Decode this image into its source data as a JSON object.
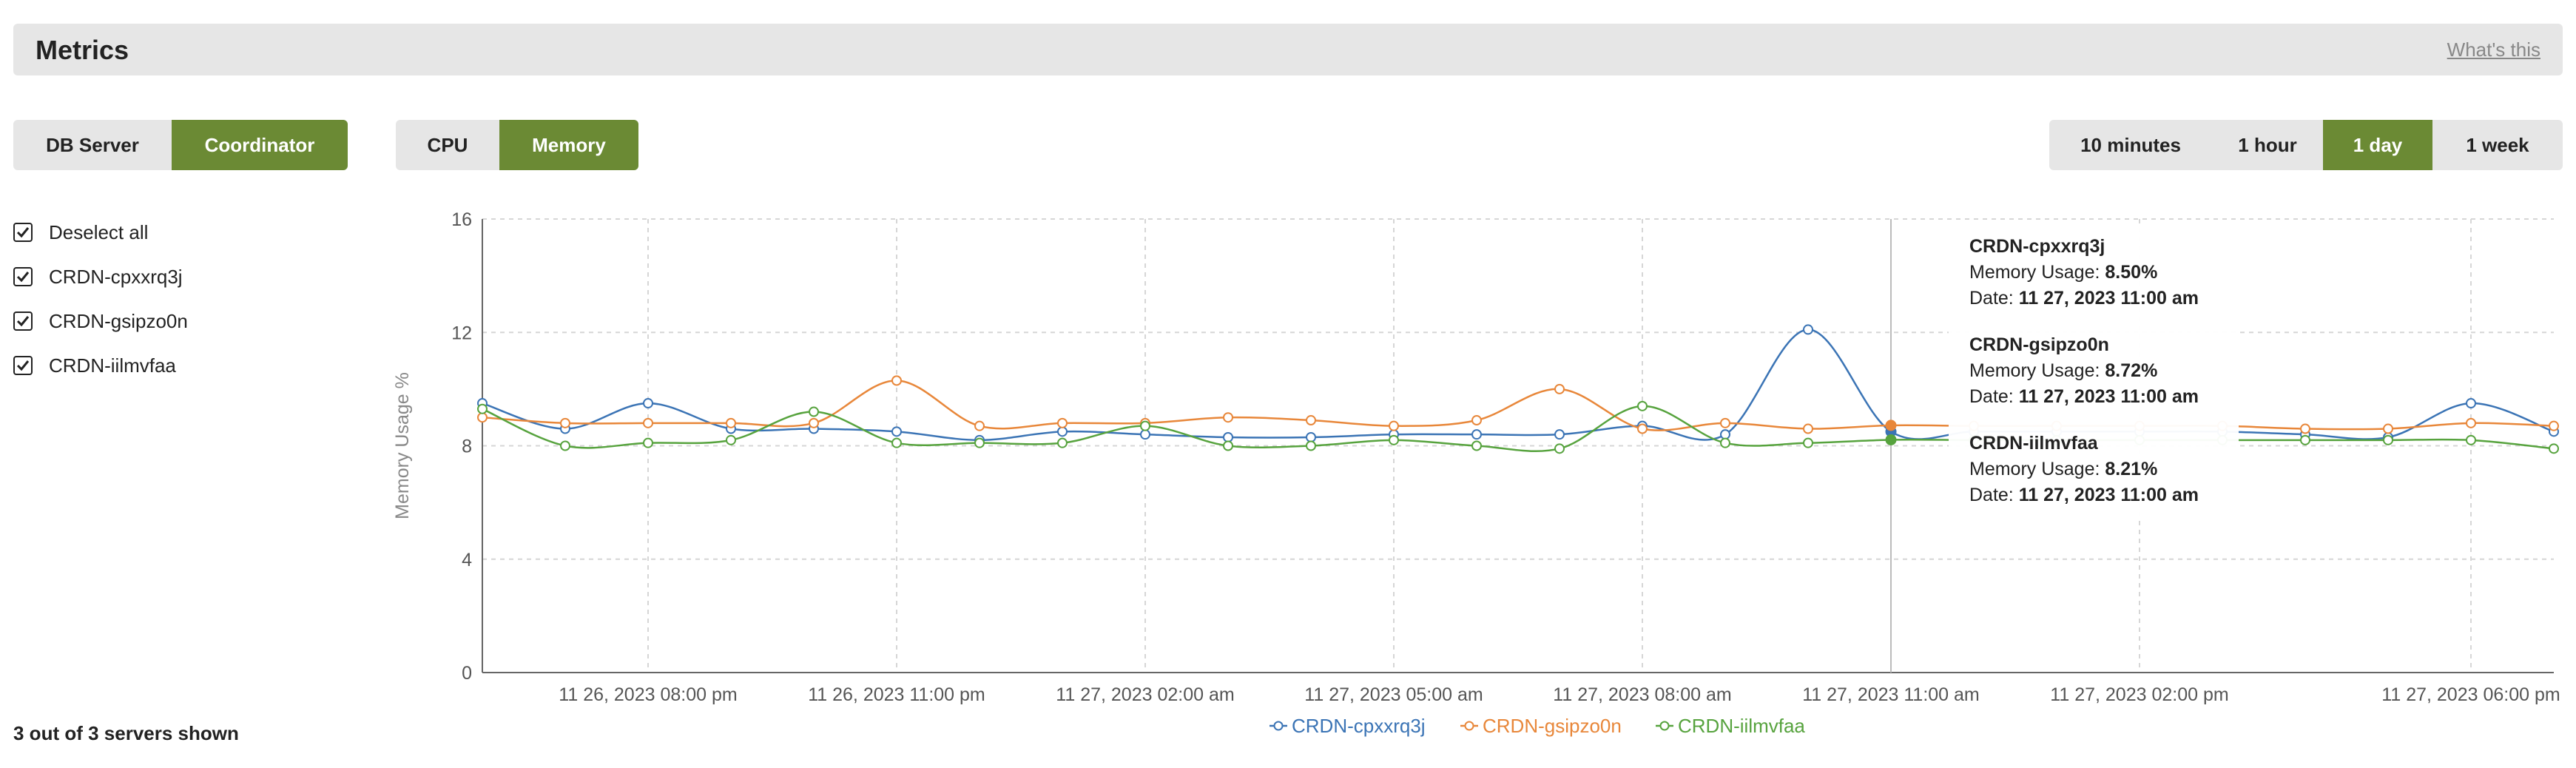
{
  "header": {
    "title": "Metrics",
    "whats_this": "What's this"
  },
  "server_type_tabs": [
    {
      "label": "DB Server",
      "active": false
    },
    {
      "label": "Coordinator",
      "active": true
    }
  ],
  "metric_tabs": [
    {
      "label": "CPU",
      "active": false
    },
    {
      "label": "Memory",
      "active": true
    }
  ],
  "range_tabs": [
    {
      "label": "10 minutes",
      "active": false
    },
    {
      "label": "1 hour",
      "active": false
    },
    {
      "label": "1 day",
      "active": true
    },
    {
      "label": "1 week",
      "active": false
    }
  ],
  "sidebar": {
    "deselect_all": "Deselect all",
    "servers": [
      {
        "label": "CRDN-cpxxrq3j",
        "checked": true
      },
      {
        "label": "CRDN-gsipzo0n",
        "checked": true
      },
      {
        "label": "CRDN-iilmvfaa",
        "checked": true
      }
    ],
    "footer": "3 out of 3 servers shown"
  },
  "tooltip": {
    "entries": [
      {
        "name": "CRDN-cpxxrq3j",
        "usage_label": "Memory Usage:",
        "usage": "8.50%",
        "date_label": "Date:",
        "date": "11 27, 2023 11:00 am"
      },
      {
        "name": "CRDN-gsipzo0n",
        "usage_label": "Memory Usage:",
        "usage": "8.72%",
        "date_label": "Date:",
        "date": "11 27, 2023 11:00 am"
      },
      {
        "name": "CRDN-iilmvfaa",
        "usage_label": "Memory Usage:",
        "usage": "8.21%",
        "date_label": "Date:",
        "date": "11 27, 2023 11:00 am"
      }
    ]
  },
  "chart_data": {
    "type": "line",
    "ylabel": "Memory Usage %",
    "ylim": [
      0,
      16
    ],
    "yticks": [
      0,
      4,
      8,
      12,
      16
    ],
    "x_tick_labels": [
      "11 26, 2023 08:00 pm",
      "11 26, 2023 11:00 pm",
      "11 27, 2023 02:00 am",
      "11 27, 2023 05:00 am",
      "11 27, 2023 08:00 am",
      "11 27, 2023 11:00 am",
      "11 27, 2023 02:00 pm",
      "11 27, 2023 06:00 pm"
    ],
    "x": [
      "11 26, 2023 06:00 pm",
      "11 26, 2023 07:00 pm",
      "11 26, 2023 08:00 pm",
      "11 26, 2023 09:00 pm",
      "11 26, 2023 10:00 pm",
      "11 26, 2023 11:00 pm",
      "11 27, 2023 12:00 am",
      "11 27, 2023 01:00 am",
      "11 27, 2023 02:00 am",
      "11 27, 2023 03:00 am",
      "11 27, 2023 04:00 am",
      "11 27, 2023 05:00 am",
      "11 27, 2023 06:00 am",
      "11 27, 2023 07:00 am",
      "11 27, 2023 08:00 am",
      "11 27, 2023 09:00 am",
      "11 27, 2023 10:00 am",
      "11 27, 2023 11:00 am",
      "11 27, 2023 12:00 pm",
      "11 27, 2023 01:00 pm",
      "11 27, 2023 02:00 pm",
      "11 27, 2023 03:00 pm",
      "11 27, 2023 04:00 pm",
      "11 27, 2023 05:00 pm",
      "11 27, 2023 06:00 pm",
      "11 27, 2023 07:00 pm"
    ],
    "series": [
      {
        "name": "CRDN-cpxxrq3j",
        "color": "#3b74b5",
        "values": [
          9.5,
          8.6,
          9.5,
          8.6,
          8.6,
          8.5,
          8.2,
          8.5,
          8.4,
          8.3,
          8.3,
          8.4,
          8.4,
          8.4,
          8.7,
          8.4,
          12.1,
          8.5,
          8.5,
          8.5,
          8.5,
          8.5,
          8.4,
          8.3,
          9.5,
          8.5
        ]
      },
      {
        "name": "CRDN-gsipzo0n",
        "color": "#e8873a",
        "values": [
          9.0,
          8.8,
          8.8,
          8.8,
          8.8,
          10.3,
          8.7,
          8.8,
          8.8,
          9.0,
          8.9,
          8.7,
          8.9,
          10.0,
          8.6,
          8.8,
          8.6,
          8.72,
          8.7,
          8.7,
          8.7,
          8.7,
          8.6,
          8.6,
          8.8,
          8.7
        ]
      },
      {
        "name": "CRDN-iilmvfaa",
        "color": "#57a33e",
        "values": [
          9.3,
          8.0,
          8.1,
          8.2,
          9.2,
          8.1,
          8.1,
          8.1,
          8.7,
          8.0,
          8.0,
          8.2,
          8.0,
          7.9,
          9.4,
          8.1,
          8.1,
          8.21,
          8.2,
          8.2,
          8.2,
          8.2,
          8.2,
          8.2,
          8.2,
          7.9
        ]
      }
    ],
    "highlight_x": "11 27, 2023 11:00 am",
    "legend_position": "bottom",
    "grid": true
  }
}
